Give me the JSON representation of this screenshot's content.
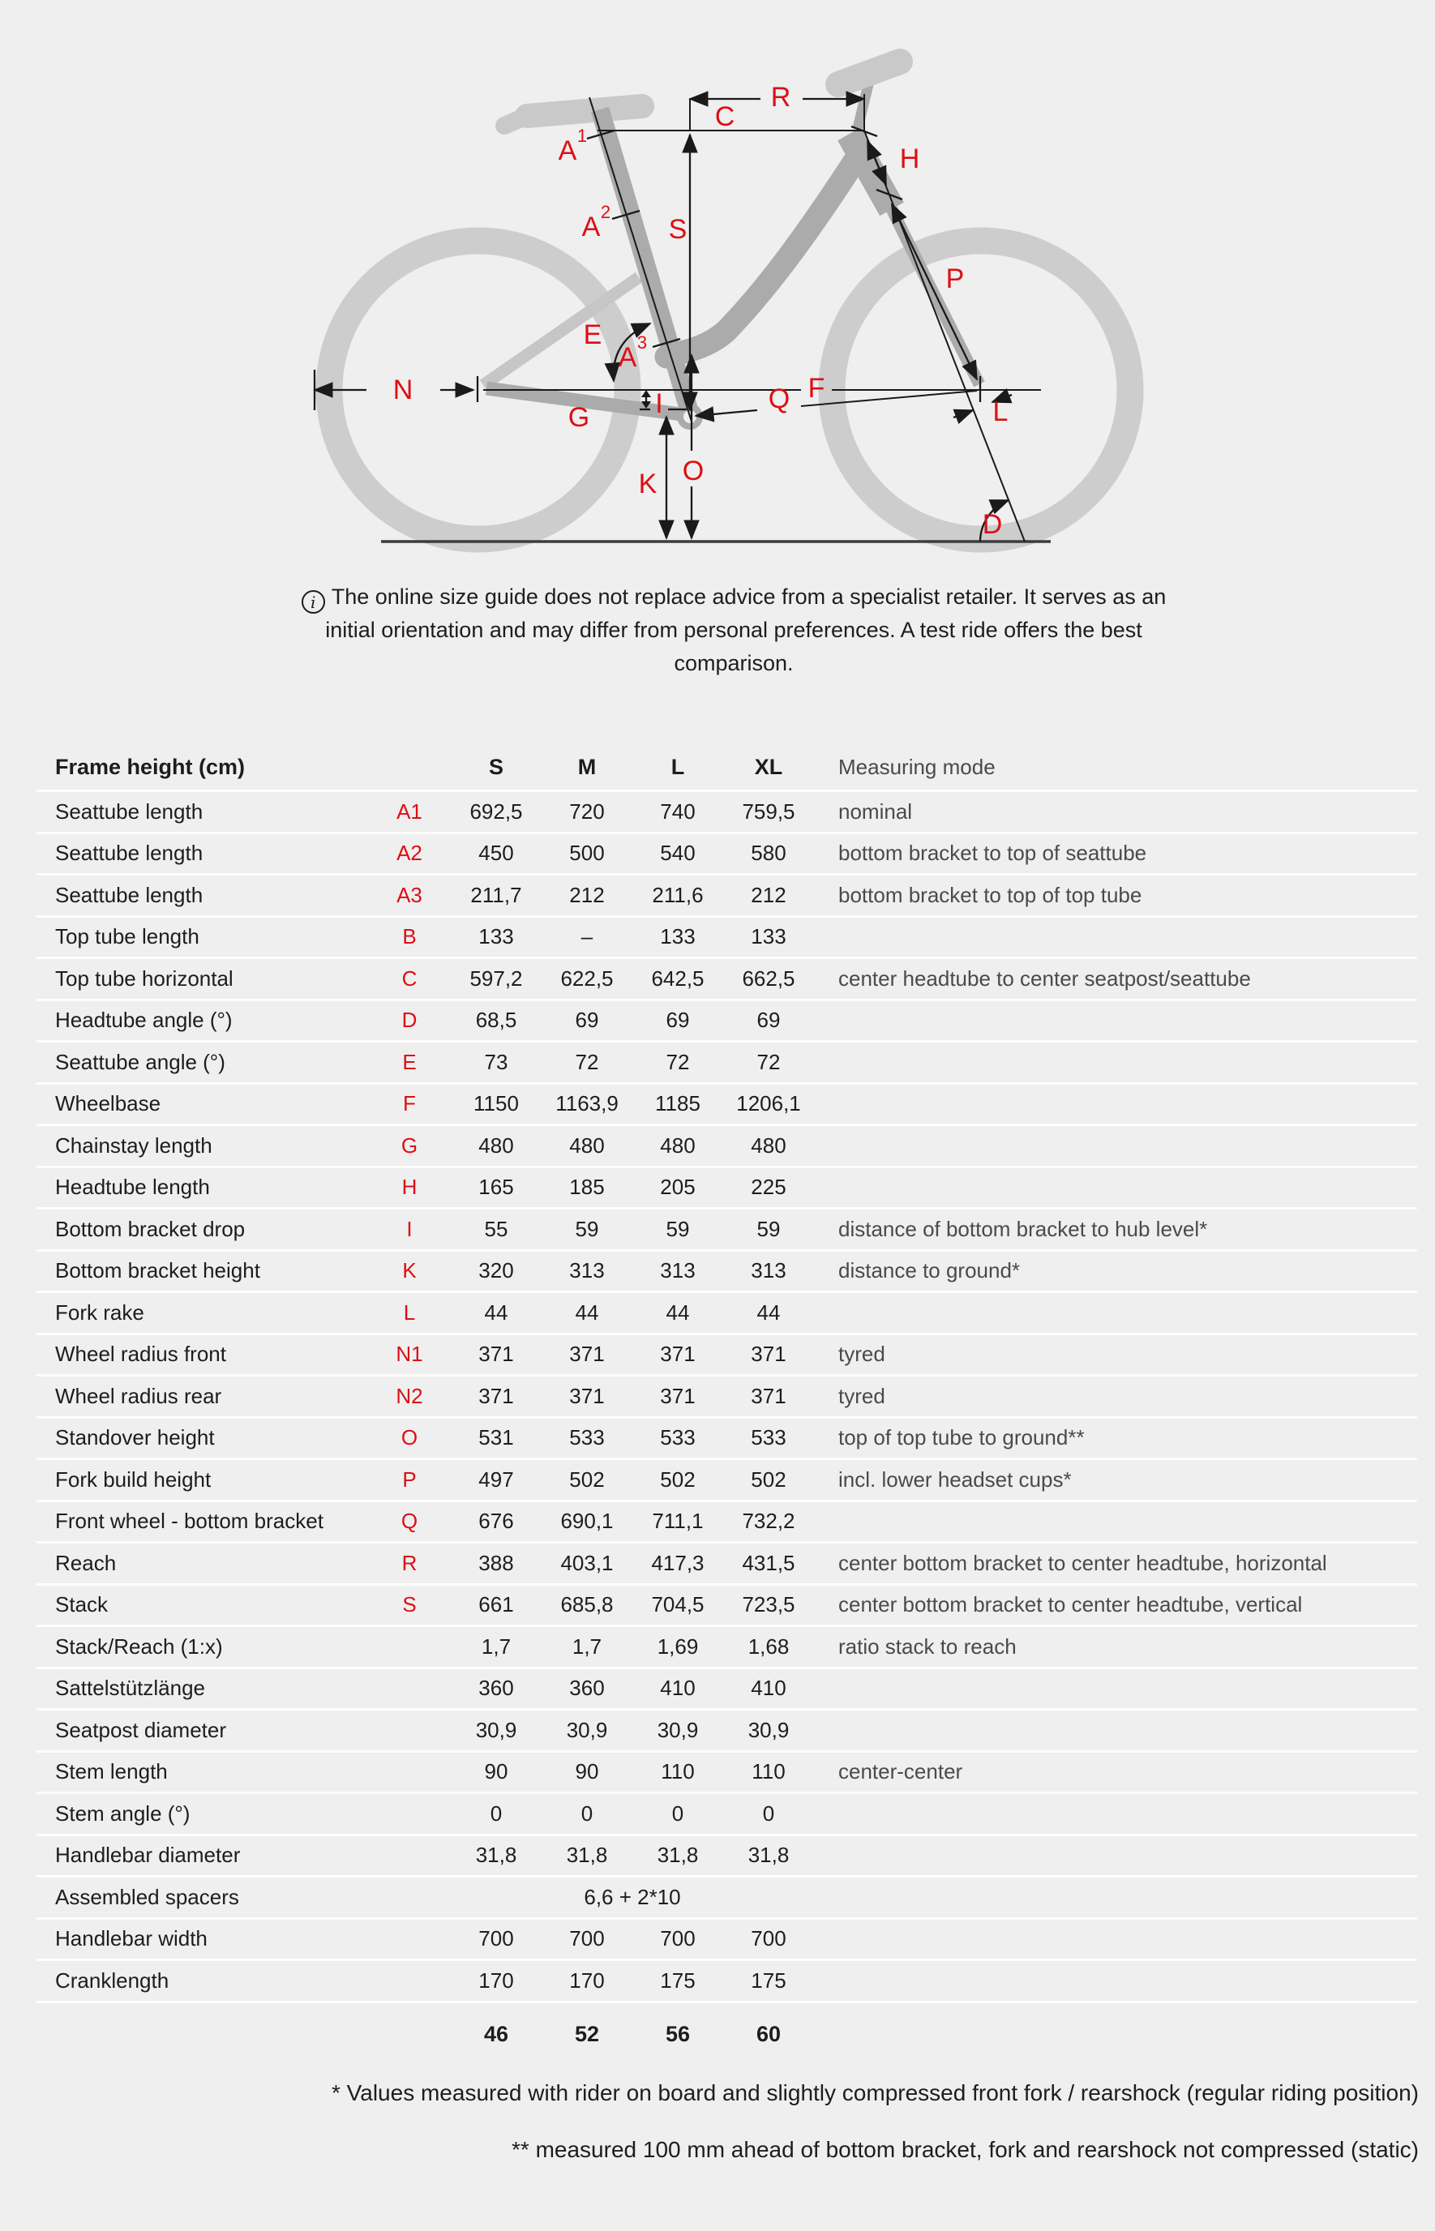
{
  "colors": {
    "background": "#efefef",
    "accent_red": "#dd0f14",
    "frame_gray": "#ababab",
    "wheel_gray": "#c9c9c9",
    "line": "#1a1a1a"
  },
  "diagram": {
    "labels": {
      "r": "R",
      "c": "C",
      "s": "S",
      "h": "H",
      "p": "P",
      "e": "E",
      "n": "N",
      "f": "F",
      "g": "G",
      "i": "I",
      "q": "Q",
      "l": "L",
      "k": "K",
      "o": "O",
      "d": "D",
      "a1_base": "A",
      "a1_sup": "1",
      "a2_base": "A",
      "a2_sup": "2",
      "a3_base": "A",
      "a3_sup": "3"
    },
    "note_icon": "i",
    "note": "The online size guide does not replace advice from a specialist retailer. It serves as an initial orientation and may differ from personal preferences. A test ride offers the best comparison."
  },
  "table": {
    "header": {
      "title": "Frame height (cm)",
      "columns": [
        "S",
        "M",
        "L",
        "XL"
      ],
      "measuring": "Measuring mode"
    },
    "rows": [
      {
        "label": "Seattube length",
        "letter": "A1",
        "values": [
          "692,5",
          "720",
          "740",
          "759,5"
        ],
        "mode": "nominal"
      },
      {
        "label": "Seattube length",
        "letter": "A2",
        "values": [
          "450",
          "500",
          "540",
          "580"
        ],
        "mode": "bottom bracket to top of seattube"
      },
      {
        "label": "Seattube length",
        "letter": "A3",
        "values": [
          "211,7",
          "212",
          "211,6",
          "212"
        ],
        "mode": "bottom bracket to top of top tube"
      },
      {
        "label": "Top tube length",
        "letter": "B",
        "values": [
          "133",
          "–",
          "133",
          "133"
        ],
        "mode": ""
      },
      {
        "label": "Top tube horizontal",
        "letter": "C",
        "values": [
          "597,2",
          "622,5",
          "642,5",
          "662,5"
        ],
        "mode": "center headtube to center seatpost/seattube"
      },
      {
        "label": "Headtube angle (°)",
        "letter": "D",
        "values": [
          "68,5",
          "69",
          "69",
          "69"
        ],
        "mode": ""
      },
      {
        "label": "Seattube angle (°)",
        "letter": "E",
        "values": [
          "73",
          "72",
          "72",
          "72"
        ],
        "mode": ""
      },
      {
        "label": "Wheelbase",
        "letter": "F",
        "values": [
          "1150",
          "1163,9",
          "1185",
          "1206,1"
        ],
        "mode": ""
      },
      {
        "label": "Chainstay length",
        "letter": "G",
        "values": [
          "480",
          "480",
          "480",
          "480"
        ],
        "mode": ""
      },
      {
        "label": "Headtube length",
        "letter": "H",
        "values": [
          "165",
          "185",
          "205",
          "225"
        ],
        "mode": ""
      },
      {
        "label": "Bottom bracket drop",
        "letter": "I",
        "values": [
          "55",
          "59",
          "59",
          "59"
        ],
        "mode": "distance of bottom bracket to hub level*"
      },
      {
        "label": "Bottom bracket height",
        "letter": "K",
        "values": [
          "320",
          "313",
          "313",
          "313"
        ],
        "mode": "distance to ground*"
      },
      {
        "label": "Fork rake",
        "letter": "L",
        "values": [
          "44",
          "44",
          "44",
          "44"
        ],
        "mode": ""
      },
      {
        "label": "Wheel radius front",
        "letter": "N1",
        "values": [
          "371",
          "371",
          "371",
          "371"
        ],
        "mode": "tyred"
      },
      {
        "label": "Wheel radius rear",
        "letter": "N2",
        "values": [
          "371",
          "371",
          "371",
          "371"
        ],
        "mode": "tyred"
      },
      {
        "label": "Standover height",
        "letter": "O",
        "values": [
          "531",
          "533",
          "533",
          "533"
        ],
        "mode": "top of top tube to ground**"
      },
      {
        "label": "Fork build height",
        "letter": "P",
        "values": [
          "497",
          "502",
          "502",
          "502"
        ],
        "mode": "incl. lower headset cups*"
      },
      {
        "label": "Front wheel - bottom bracket",
        "letter": "Q",
        "values": [
          "676",
          "690,1",
          "711,1",
          "732,2"
        ],
        "mode": ""
      },
      {
        "label": "Reach",
        "letter": "R",
        "values": [
          "388",
          "403,1",
          "417,3",
          "431,5"
        ],
        "mode": "center bottom bracket to center headtube, horizontal"
      },
      {
        "label": "Stack",
        "letter": "S",
        "values": [
          "661",
          "685,8",
          "704,5",
          "723,5"
        ],
        "mode": "center bottom bracket to center headtube, vertical"
      },
      {
        "label": "Stack/Reach (1:x)",
        "letter": "",
        "values": [
          "1,7",
          "1,7",
          "1,69",
          "1,68"
        ],
        "mode": "ratio stack to reach"
      },
      {
        "label": "Sattelstützlänge",
        "letter": "",
        "values": [
          "360",
          "360",
          "410",
          "410"
        ],
        "mode": ""
      },
      {
        "label": "Seatpost diameter",
        "letter": "",
        "values": [
          "30,9",
          "30,9",
          "30,9",
          "30,9"
        ],
        "mode": ""
      },
      {
        "label": "Stem length",
        "letter": "",
        "values": [
          "90",
          "90",
          "110",
          "110"
        ],
        "mode": "center-center"
      },
      {
        "label": "Stem angle (°)",
        "letter": "",
        "values": [
          "0",
          "0",
          "0",
          "0"
        ],
        "mode": ""
      },
      {
        "label": "Handlebar diameter",
        "letter": "",
        "values": [
          "31,8",
          "31,8",
          "31,8",
          "31,8"
        ],
        "mode": ""
      },
      {
        "label": "Assembled spacers",
        "letter": "",
        "values": [],
        "span_value": "6,6 + 2*10",
        "mode": ""
      },
      {
        "label": "Handlebar width",
        "letter": "",
        "values": [
          "700",
          "700",
          "700",
          "700"
        ],
        "mode": ""
      },
      {
        "label": "Cranklength",
        "letter": "",
        "values": [
          "170",
          "170",
          "175",
          "175"
        ],
        "mode": ""
      }
    ],
    "sizes_row": [
      "46",
      "52",
      "56",
      "60"
    ]
  },
  "footnotes": [
    "* Values measured with rider on board and slightly compressed front fork / rearshock (regular riding position)",
    "** measured 100 mm ahead of bottom bracket, fork and rearshock not compressed (static)"
  ]
}
